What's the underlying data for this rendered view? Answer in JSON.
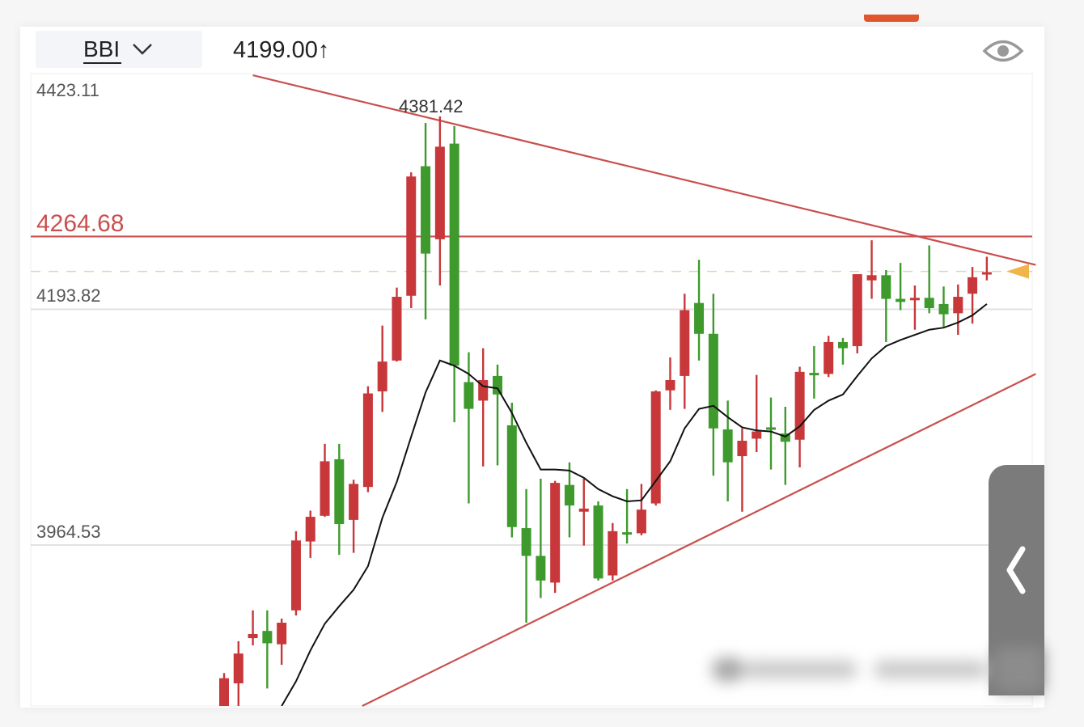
{
  "header": {
    "indicator": "BBI",
    "indicator_value": "4199.00↑",
    "dropdown_icon": "chevron-down-icon",
    "visibility_icon": "eye-icon"
  },
  "side_panel": {
    "icon": "chevron-left-icon"
  },
  "colors": {
    "up": "#c8373a",
    "down": "#3e9a2d",
    "trendline": "#c9504e",
    "bbi": "#111111",
    "current_price_marker": "#f0b44a",
    "accent_tab": "#e0572e"
  },
  "chart_data": {
    "type": "candlestick",
    "title": "",
    "xlabel": "",
    "ylabel": "",
    "ylim": [
      3808,
      4423.11
    ],
    "grid": true,
    "y_labels": {
      "top": "4423.11",
      "resistance": "4264.68",
      "mid": "4193.82",
      "low": "3964.53"
    },
    "gridlines": [
      4193.82,
      3964.53
    ],
    "max_label": "4381.42",
    "horizontal_line": 4264.68,
    "current_price": 4230.7,
    "trendlines": [
      {
        "from": [
          2.0,
          4421.5
        ],
        "to": [
          56.4,
          4237.0
        ]
      },
      {
        "from": [
          9.6,
          3808.0
        ],
        "to": [
          56.4,
          4131.0
        ]
      }
    ],
    "candles_ohlc": [
      [
        3803,
        3840,
        3800,
        3835
      ],
      [
        3830,
        3871,
        3805,
        3859
      ],
      [
        3874,
        3901,
        3867,
        3878
      ],
      [
        3881,
        3901,
        3825,
        3869
      ],
      [
        3868,
        3893,
        3848,
        3889
      ],
      [
        3901,
        3978,
        3896,
        3969
      ],
      [
        3968,
        3998,
        3952,
        3992
      ],
      [
        3993,
        4063,
        3992,
        4046
      ],
      [
        4048,
        4063,
        3955,
        3985
      ],
      [
        3989,
        4028,
        3957,
        4024
      ],
      [
        4021,
        4119,
        4016,
        4112
      ],
      [
        4114,
        4178,
        4094,
        4143
      ],
      [
        4144,
        4215,
        4143,
        4206
      ],
      [
        4207,
        4327,
        4195,
        4323
      ],
      [
        4333,
        4375,
        4184,
        4248
      ],
      [
        4262,
        4381.42,
        4217,
        4352
      ],
      [
        4355,
        4372,
        4084,
        4139
      ],
      [
        4123,
        4152,
        4005,
        4097
      ],
      [
        4105,
        4156,
        4041,
        4125
      ],
      [
        4129,
        4140,
        4042,
        4111
      ],
      [
        4081,
        4103,
        3972,
        3982
      ],
      [
        3981,
        4019,
        3889,
        3954
      ],
      [
        3954,
        4029,
        3913,
        3930
      ],
      [
        3928,
        4027,
        3918,
        4025
      ],
      [
        4023,
        4045,
        3972,
        4003
      ],
      [
        3997,
        4029,
        3964,
        4000
      ],
      [
        4003,
        4007,
        3930,
        3932
      ],
      [
        3935,
        3986,
        3930,
        3978
      ],
      [
        3977,
        4019,
        3966,
        3976
      ],
      [
        3976,
        4024,
        3974,
        3999
      ],
      [
        4005,
        4115,
        4003,
        4114
      ],
      [
        4115,
        4147,
        4096,
        4125
      ],
      [
        4129,
        4209,
        4097,
        4193
      ],
      [
        4200,
        4242,
        4144,
        4170
      ],
      [
        4170,
        4209,
        4032,
        4078
      ],
      [
        4077,
        4105,
        4007,
        4045
      ],
      [
        4051,
        4078,
        3997,
        4066
      ],
      [
        4068,
        4130,
        4055,
        4075
      ],
      [
        4079,
        4108,
        4038,
        4077
      ],
      [
        4073,
        4099,
        4023,
        4065
      ],
      [
        4067,
        4138,
        4040,
        4133
      ],
      [
        4132,
        4158,
        4107,
        4130
      ],
      [
        4131,
        4168,
        4128,
        4162
      ],
      [
        4162,
        4166,
        4140,
        4156
      ],
      [
        4158,
        4228,
        4151,
        4228
      ],
      [
        4222,
        4261,
        4204,
        4227
      ],
      [
        4227,
        4232,
        4162,
        4204
      ],
      [
        4204,
        4239,
        4193,
        4201
      ],
      [
        4203,
        4217,
        4174,
        4205
      ],
      [
        4205,
        4256,
        4190,
        4195
      ],
      [
        4199,
        4216,
        4177,
        4189
      ],
      [
        4190,
        4218,
        4169,
        4206
      ],
      [
        4209,
        4235,
        4180,
        4225
      ],
      [
        4228,
        4245,
        4222,
        4230
      ]
    ],
    "bbi": [
      null,
      null,
      null,
      null,
      3808,
      3832,
      3862,
      3888,
      3905,
      3921,
      3944,
      3991,
      4026,
      4070,
      4113,
      4144,
      4139,
      4131,
      4119,
      4117,
      4093,
      4064,
      4038,
      4038,
      4037,
      4030,
      4019,
      4012,
      4007,
      4008,
      4027,
      4046,
      4078,
      4097,
      4100,
      4089,
      4079,
      4076,
      4075,
      4070,
      4080,
      4096,
      4105,
      4111,
      4129,
      4146,
      4158,
      4164,
      4169,
      4174,
      4176,
      4181,
      4188,
      4199
    ]
  }
}
